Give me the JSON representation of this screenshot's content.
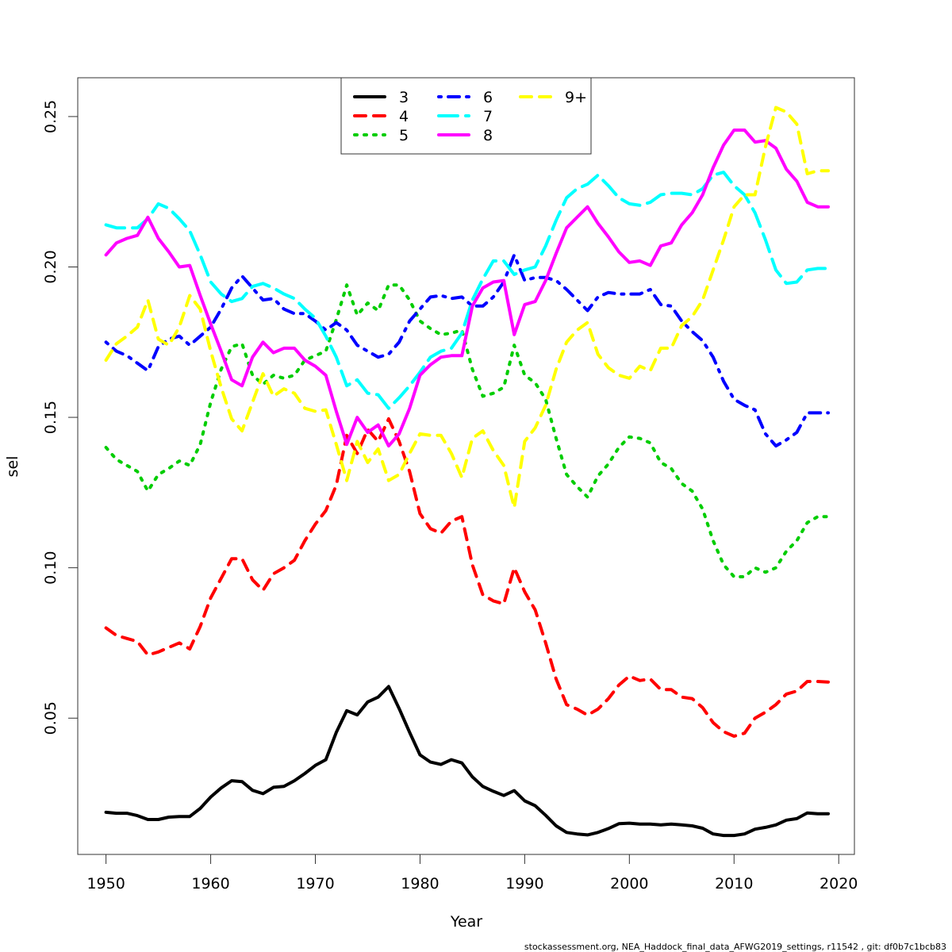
{
  "chart_data": {
    "type": "line",
    "title": "",
    "xlabel": "Year",
    "ylabel": "sel",
    "xlim": [
      1947.3,
      2021.5
    ],
    "ylim": [
      0.0047,
      0.2629
    ],
    "x_ticks": [
      1950,
      1960,
      1970,
      1980,
      1990,
      2000,
      2010,
      2020
    ],
    "x_tick_labels": [
      "1950",
      "1960",
      "1970",
      "1980",
      "1990",
      "2000",
      "2010",
      "2020"
    ],
    "y_ticks": [
      0.05,
      0.1,
      0.15,
      0.2,
      0.25
    ],
    "y_tick_labels": [
      "0.05",
      "0.10",
      "0.15",
      "0.20",
      "0.25"
    ],
    "grid": false,
    "legend_position": "top-center",
    "x": [
      1950,
      1951,
      1952,
      1953,
      1954,
      1955,
      1956,
      1957,
      1958,
      1959,
      1960,
      1961,
      1962,
      1963,
      1964,
      1965,
      1966,
      1967,
      1968,
      1969,
      1970,
      1971,
      1972,
      1973,
      1974,
      1975,
      1976,
      1977,
      1978,
      1979,
      1980,
      1981,
      1982,
      1983,
      1984,
      1985,
      1986,
      1987,
      1988,
      1989,
      1990,
      1991,
      1992,
      1993,
      1994,
      1995,
      1996,
      1997,
      1998,
      1999,
      2000,
      2001,
      2002,
      2003,
      2004,
      2005,
      2006,
      2007,
      2008,
      2009,
      2010,
      2011,
      2012,
      2013,
      2014,
      2015,
      2016,
      2017,
      2018,
      2019
    ],
    "series": [
      {
        "name": "3",
        "color": "#000000",
        "dash": "solid",
        "values": [
          0.0187,
          0.0184,
          0.0184,
          0.0176,
          0.0163,
          0.0163,
          0.0171,
          0.0173,
          0.0173,
          0.02,
          0.0238,
          0.0268,
          0.0292,
          0.0289,
          0.026,
          0.0249,
          0.027,
          0.0273,
          0.0292,
          0.0316,
          0.0343,
          0.0362,
          0.0453,
          0.0525,
          0.0511,
          0.0554,
          0.057,
          0.0605,
          0.0532,
          0.0453,
          0.0378,
          0.0354,
          0.0346,
          0.0362,
          0.0351,
          0.0305,
          0.0273,
          0.0257,
          0.0243,
          0.0259,
          0.0225,
          0.0209,
          0.0177,
          0.0142,
          0.012,
          0.0115,
          0.0112,
          0.012,
          0.0133,
          0.0149,
          0.0151,
          0.0148,
          0.0148,
          0.0145,
          0.0148,
          0.0145,
          0.0142,
          0.0134,
          0.0115,
          0.011,
          0.011,
          0.0115,
          0.0131,
          0.0137,
          0.0145,
          0.0161,
          0.0166,
          0.0185,
          0.0182,
          0.0182
        ]
      },
      {
        "name": "4",
        "color": "#ff0000",
        "dash": "dashed",
        "values": [
          0.08,
          0.0775,
          0.0765,
          0.0755,
          0.071,
          0.072,
          0.0735,
          0.075,
          0.073,
          0.0805,
          0.09,
          0.0965,
          0.103,
          0.103,
          0.096,
          0.0925,
          0.098,
          0.1,
          0.1025,
          0.109,
          0.1145,
          0.119,
          0.1275,
          0.144,
          0.138,
          0.146,
          0.142,
          0.1495,
          0.142,
          0.132,
          0.118,
          0.113,
          0.1115,
          0.1155,
          0.117,
          0.101,
          0.091,
          0.089,
          0.088,
          0.1,
          0.092,
          0.086,
          0.075,
          0.063,
          0.0545,
          0.053,
          0.051,
          0.053,
          0.0565,
          0.061,
          0.064,
          0.0625,
          0.063,
          0.0595,
          0.0595,
          0.057,
          0.0565,
          0.0535,
          0.0485,
          0.0455,
          0.044,
          0.045,
          0.05,
          0.052,
          0.0545,
          0.058,
          0.059,
          0.0622,
          0.0622,
          0.062
        ]
      },
      {
        "name": "5",
        "color": "#00cd00",
        "dash": "dotted",
        "values": [
          0.14,
          0.136,
          0.134,
          0.132,
          0.1255,
          0.131,
          0.133,
          0.1355,
          0.134,
          0.141,
          0.155,
          0.166,
          0.1735,
          0.1745,
          0.164,
          0.161,
          0.164,
          0.163,
          0.164,
          0.169,
          0.1705,
          0.172,
          0.1825,
          0.194,
          0.184,
          0.188,
          0.1855,
          0.194,
          0.194,
          0.189,
          0.182,
          0.1795,
          0.1775,
          0.178,
          0.179,
          0.166,
          0.157,
          0.158,
          0.16,
          0.174,
          0.164,
          0.1615,
          0.156,
          0.143,
          0.131,
          0.127,
          0.1235,
          0.1305,
          0.1345,
          0.14,
          0.1435,
          0.143,
          0.1415,
          0.135,
          0.133,
          0.128,
          0.1255,
          0.1195,
          0.109,
          0.101,
          0.097,
          0.097,
          0.1,
          0.0985,
          0.1,
          0.1055,
          0.109,
          0.115,
          0.117,
          0.117
        ]
      },
      {
        "name": "6",
        "color": "#0000ff",
        "dash": "dotdash",
        "values": [
          0.175,
          0.172,
          0.1705,
          0.168,
          0.1655,
          0.1735,
          0.176,
          0.177,
          0.174,
          0.177,
          0.18,
          0.186,
          0.193,
          0.197,
          0.193,
          0.189,
          0.1895,
          0.186,
          0.1845,
          0.1845,
          0.182,
          0.179,
          0.1815,
          0.179,
          0.174,
          0.172,
          0.17,
          0.171,
          0.175,
          0.182,
          0.186,
          0.19,
          0.1905,
          0.1895,
          0.19,
          0.187,
          0.187,
          0.19,
          0.195,
          0.204,
          0.1955,
          0.1965,
          0.1965,
          0.1955,
          0.1925,
          0.189,
          0.1855,
          0.19,
          0.1915,
          0.191,
          0.191,
          0.191,
          0.1925,
          0.1875,
          0.187,
          0.182,
          0.1785,
          0.1755,
          0.17,
          0.162,
          0.156,
          0.154,
          0.1525,
          0.1445,
          0.1405,
          0.1425,
          0.145,
          0.1515,
          0.1515,
          0.1515
        ]
      },
      {
        "name": "7",
        "color": "#00ffff",
        "dash": "longdash",
        "values": [
          0.214,
          0.213,
          0.213,
          0.213,
          0.216,
          0.221,
          0.2195,
          0.216,
          0.212,
          0.204,
          0.195,
          0.191,
          0.1885,
          0.1895,
          0.1935,
          0.1945,
          0.193,
          0.191,
          0.1895,
          0.186,
          0.183,
          0.177,
          0.17,
          0.1605,
          0.1625,
          0.158,
          0.1575,
          0.153,
          0.1565,
          0.1605,
          0.165,
          0.17,
          0.172,
          0.173,
          0.178,
          0.189,
          0.196,
          0.202,
          0.202,
          0.1975,
          0.199,
          0.2,
          0.207,
          0.2155,
          0.223,
          0.226,
          0.2275,
          0.2305,
          0.227,
          0.223,
          0.221,
          0.2205,
          0.2215,
          0.224,
          0.2245,
          0.2245,
          0.224,
          0.226,
          0.2305,
          0.2315,
          0.227,
          0.224,
          0.218,
          0.209,
          0.199,
          0.1945,
          0.195,
          0.199,
          0.1995,
          0.1995
        ]
      },
      {
        "name": "8",
        "color": "#ff00ff",
        "dash": "solid",
        "values": [
          0.204,
          0.208,
          0.2095,
          0.2105,
          0.2165,
          0.2095,
          0.205,
          0.2,
          0.2005,
          0.1905,
          0.181,
          0.172,
          0.1625,
          0.1605,
          0.17,
          0.175,
          0.1715,
          0.173,
          0.173,
          0.169,
          0.167,
          0.164,
          0.152,
          0.141,
          0.15,
          0.145,
          0.1475,
          0.1405,
          0.1445,
          0.153,
          0.164,
          0.1675,
          0.17,
          0.1705,
          0.1705,
          0.187,
          0.193,
          0.195,
          0.1955,
          0.1775,
          0.1875,
          0.1885,
          0.1955,
          0.2045,
          0.213,
          0.2165,
          0.22,
          0.2145,
          0.21,
          0.205,
          0.2015,
          0.202,
          0.2005,
          0.207,
          0.208,
          0.214,
          0.218,
          0.224,
          0.233,
          0.2405,
          0.2455,
          0.2455,
          0.2415,
          0.242,
          0.2395,
          0.2325,
          0.2285,
          0.2215,
          0.22,
          0.22
        ]
      },
      {
        "name": "9+",
        "color": "#ffff00",
        "dash": "dashed",
        "values": [
          0.169,
          0.1745,
          0.177,
          0.18,
          0.189,
          0.176,
          0.174,
          0.18,
          0.1905,
          0.186,
          0.172,
          0.16,
          0.1495,
          0.1455,
          0.155,
          0.1645,
          0.157,
          0.1595,
          0.158,
          0.153,
          0.152,
          0.1525,
          0.141,
          0.129,
          0.142,
          0.135,
          0.1395,
          0.129,
          0.131,
          0.138,
          0.1445,
          0.144,
          0.144,
          0.138,
          0.13,
          0.143,
          0.1455,
          0.139,
          0.134,
          0.12,
          0.142,
          0.1465,
          0.154,
          0.166,
          0.175,
          0.179,
          0.1815,
          0.171,
          0.1665,
          0.164,
          0.163,
          0.167,
          0.1655,
          0.173,
          0.173,
          0.1805,
          0.1835,
          0.189,
          0.199,
          0.209,
          0.22,
          0.224,
          0.224,
          0.24,
          0.253,
          0.2515,
          0.2475,
          0.231,
          0.232,
          0.232
        ]
      }
    ]
  },
  "legend": {
    "entries": [
      "3",
      "4",
      "5",
      "6",
      "7",
      "8",
      "9+"
    ]
  },
  "footer": {
    "text": "stockassessment.org, NEA_Haddock_final_data_AFWG2019_settings, r11542 , git: df0b7c1bcb83"
  }
}
